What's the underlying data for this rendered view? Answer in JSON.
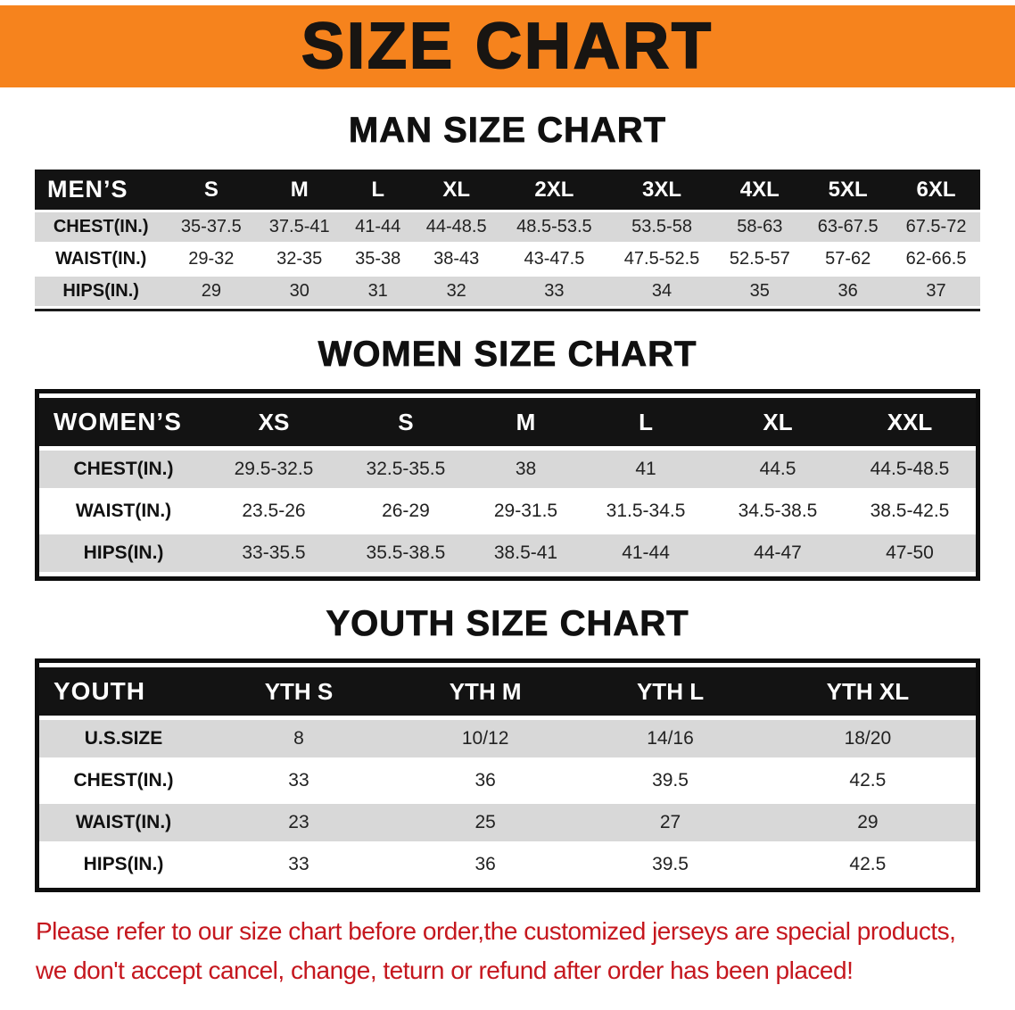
{
  "banner": {
    "title": "SIZE CHART"
  },
  "sections": [
    {
      "id": "men",
      "heading": "MAN SIZE CHART",
      "table": {
        "header": [
          "MEN’S",
          "S",
          "M",
          "L",
          "XL",
          "2XL",
          "3XL",
          "4XL",
          "5XL",
          "6XL"
        ],
        "rows": [
          [
            "CHEST(IN.)",
            "35-37.5",
            "37.5-41",
            "41-44",
            "44-48.5",
            "48.5-53.5",
            "53.5-58",
            "58-63",
            "63-67.5",
            "67.5-72"
          ],
          [
            "WAIST(IN.)",
            "29-32",
            "32-35",
            "35-38",
            "38-43",
            "43-47.5",
            "47.5-52.5",
            "52.5-57",
            "57-62",
            "62-66.5"
          ],
          [
            "HIPS(IN.)",
            "29",
            "30",
            "31",
            "32",
            "33",
            "34",
            "35",
            "36",
            "37"
          ]
        ]
      }
    },
    {
      "id": "women",
      "heading": "WOMEN SIZE CHART",
      "table": {
        "header": [
          "WOMEN’S",
          "XS",
          "S",
          "M",
          "L",
          "XL",
          "XXL"
        ],
        "rows": [
          [
            "CHEST(IN.)",
            "29.5-32.5",
            "32.5-35.5",
            "38",
            "41",
            "44.5",
            "44.5-48.5"
          ],
          [
            "WAIST(IN.)",
            "23.5-26",
            "26-29",
            "29-31.5",
            "31.5-34.5",
            "34.5-38.5",
            "38.5-42.5"
          ],
          [
            "HIPS(IN.)",
            "33-35.5",
            "35.5-38.5",
            "38.5-41",
            "41-44",
            "44-47",
            "47-50"
          ]
        ]
      }
    },
    {
      "id": "youth",
      "heading": "YOUTH SIZE CHART",
      "table": {
        "header": [
          "YOUTH",
          "YTH S",
          "YTH M",
          "YTH L",
          "YTH XL"
        ],
        "rows": [
          [
            "U.S.SIZE",
            "8",
            "10/12",
            "14/16",
            "18/20"
          ],
          [
            "CHEST(IN.)",
            "33",
            "36",
            "39.5",
            "42.5"
          ],
          [
            "WAIST(IN.)",
            "23",
            "25",
            "27",
            "29"
          ],
          [
            "HIPS(IN.)",
            "33",
            "36",
            "39.5",
            "42.5"
          ]
        ]
      }
    }
  ],
  "disclaimer": {
    "lines": [
      "Please refer to our size chart before order,the customized jerseys are special products,",
      "we don't accept cancel, change, teturn or refund after order has been placed!"
    ]
  },
  "colors": {
    "banner_orange": "#F6831D",
    "table_header_black": "#131313",
    "row_gray": "#D8D8D8",
    "disclaimer_red": "#C5171E"
  }
}
